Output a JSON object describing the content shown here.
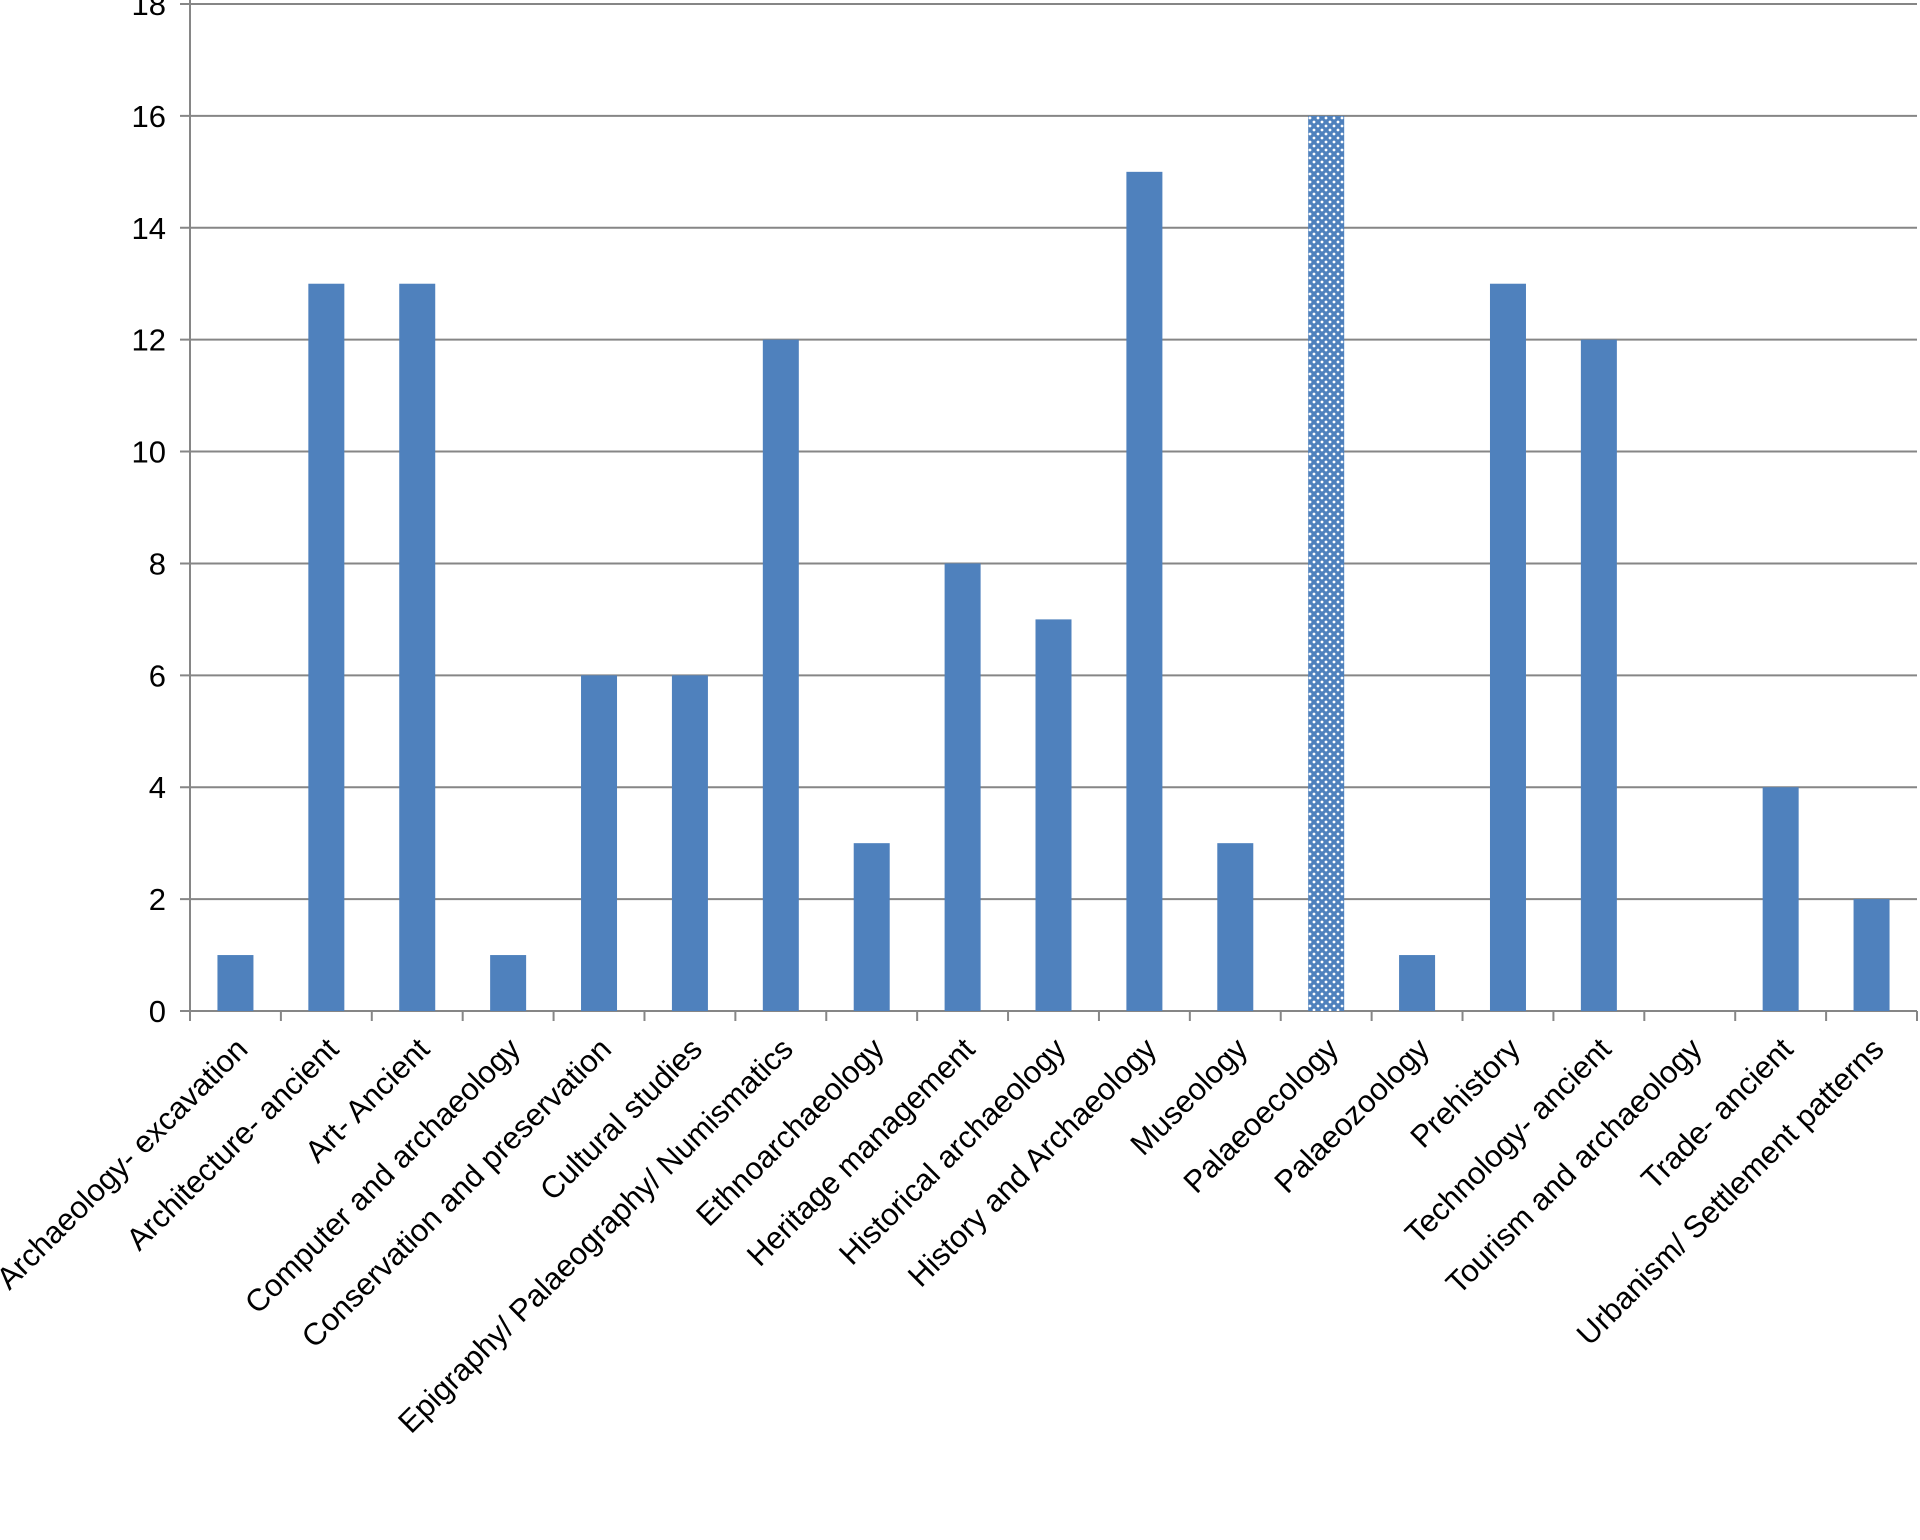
{
  "chart_data": {
    "type": "bar",
    "categories": [
      "Archaeology- excavation",
      "Architecture- ancient",
      "Art- Ancient",
      "Computer and archaeology",
      "Conservation and preservation",
      "Cultural studies",
      "Epigraphy/ Palaeography/ Numismatics",
      "Ethnoarchaeology",
      "Heritage management",
      "Historical archaeology",
      "History and Archaeology",
      "Museology",
      "Palaeoecology",
      "Palaeozoology",
      "Prehistory",
      "Technology- ancient",
      "Tourism and archaeology",
      "Trade- ancient",
      "Urbanism/ Settlement patterns"
    ],
    "values": [
      1,
      13,
      13,
      1,
      6,
      6,
      12,
      3,
      8,
      7,
      15,
      3,
      16,
      1,
      13,
      12,
      0,
      4,
      2
    ],
    "bar_fill": [
      "solid",
      "solid",
      "solid",
      "solid",
      "solid",
      "solid",
      "solid",
      "solid",
      "solid",
      "solid",
      "solid",
      "solid",
      "dotted",
      "solid",
      "solid",
      "solid",
      "solid",
      "solid",
      "solid"
    ],
    "color": "#4f81bd",
    "ylim": [
      0,
      18
    ],
    "yticks": [
      0,
      2,
      4,
      6,
      8,
      10,
      12,
      14,
      16,
      18
    ],
    "grid": true
  }
}
